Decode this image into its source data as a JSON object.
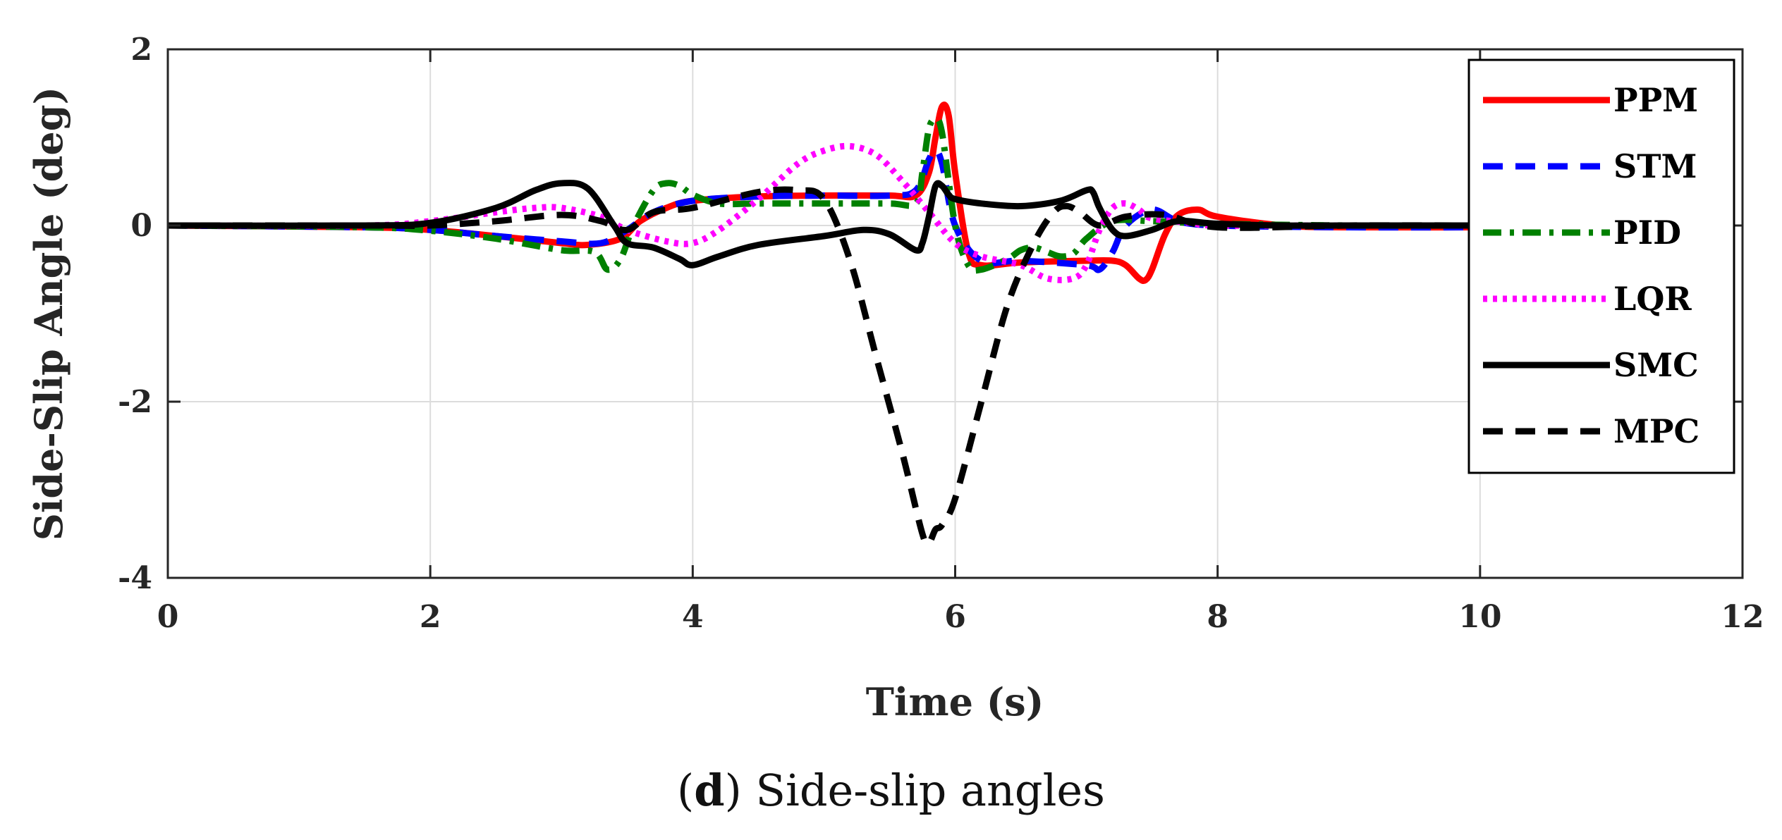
{
  "chart_data": {
    "type": "line",
    "xlabel": "Time (s)",
    "ylabel": "Side-Slip Angle (deg)",
    "xlim": [
      0,
      12
    ],
    "ylim": [
      -4,
      2
    ],
    "xticks": [
      0,
      2,
      4,
      6,
      8,
      10,
      12
    ],
    "yticks": [
      -4,
      -2,
      0,
      2
    ],
    "xtick_labels": [
      "0",
      "2",
      "4",
      "6",
      "8",
      "10",
      "12"
    ],
    "ytick_labels": [
      "-4",
      "-2",
      "0",
      "2"
    ],
    "grid": true,
    "legend_position": "top-right",
    "series": [
      {
        "name": "PPM",
        "color": "#ff0000",
        "style": "solid",
        "x": [
          0,
          1.5,
          2.0,
          2.5,
          3.0,
          3.2,
          3.45,
          3.6,
          3.8,
          4.0,
          4.5,
          5.0,
          5.5,
          5.7,
          5.8,
          5.85,
          5.9,
          5.95,
          6.0,
          6.1,
          6.2,
          6.5,
          7.0,
          7.2,
          7.3,
          7.4,
          7.45,
          7.5,
          7.6,
          7.7,
          7.85,
          8.0,
          8.5,
          9.0,
          10.0,
          11.0
        ],
        "y": [
          0,
          -0.02,
          -0.05,
          -0.12,
          -0.2,
          -0.22,
          -0.15,
          0.05,
          0.2,
          0.28,
          0.33,
          0.34,
          0.34,
          0.34,
          0.6,
          1.0,
          1.35,
          1.25,
          0.6,
          -0.3,
          -0.45,
          -0.42,
          -0.4,
          -0.4,
          -0.45,
          -0.6,
          -0.62,
          -0.5,
          -0.1,
          0.12,
          0.18,
          0.1,
          0.0,
          -0.02,
          -0.02,
          -0.02
        ]
      },
      {
        "name": "STM",
        "color": "#0000ff",
        "style": "dash",
        "x": [
          0,
          1.5,
          2.0,
          2.5,
          3.0,
          3.3,
          3.5,
          3.7,
          4.0,
          4.5,
          5.0,
          5.5,
          5.7,
          5.8,
          5.85,
          5.9,
          6.0,
          6.2,
          6.5,
          7.0,
          7.1,
          7.2,
          7.3,
          7.5,
          7.7,
          8.0,
          9.0,
          10.0,
          11.0
        ],
        "y": [
          0,
          -0.02,
          -0.05,
          -0.12,
          -0.18,
          -0.2,
          -0.05,
          0.15,
          0.28,
          0.33,
          0.34,
          0.34,
          0.4,
          0.75,
          0.85,
          0.7,
          0.0,
          -0.4,
          -0.4,
          -0.45,
          -0.5,
          -0.3,
          0.0,
          0.18,
          0.05,
          0.0,
          -0.02,
          -0.02,
          -0.02
        ]
      },
      {
        "name": "PID",
        "color": "#008000",
        "style": "dashdot",
        "x": [
          0,
          1.5,
          2.0,
          2.5,
          3.0,
          3.25,
          3.35,
          3.45,
          3.55,
          3.7,
          3.8,
          3.9,
          4.0,
          4.2,
          4.5,
          5.0,
          5.5,
          5.7,
          5.75,
          5.8,
          5.85,
          5.9,
          6.0,
          6.1,
          6.2,
          6.4,
          6.5,
          6.6,
          6.7,
          6.8,
          6.9,
          7.0,
          7.2,
          7.5,
          8.0,
          9.0,
          10.0,
          11.0
        ],
        "y": [
          0,
          -0.02,
          -0.06,
          -0.15,
          -0.28,
          -0.3,
          -0.5,
          -0.38,
          0.0,
          0.4,
          0.48,
          0.45,
          0.35,
          0.25,
          0.25,
          0.25,
          0.25,
          0.25,
          0.6,
          1.1,
          1.2,
          1.05,
          0.0,
          -0.45,
          -0.5,
          -0.38,
          -0.28,
          -0.25,
          -0.3,
          -0.35,
          -0.32,
          -0.15,
          0.05,
          0.05,
          0.02,
          0.0,
          0.0,
          0.0
        ]
      },
      {
        "name": "LQR",
        "color": "#ff00ff",
        "style": "dot",
        "x": [
          0,
          1.5,
          2.0,
          2.5,
          2.8,
          3.0,
          3.3,
          3.5,
          3.8,
          4.0,
          4.2,
          4.5,
          4.8,
          5.0,
          5.2,
          5.4,
          5.6,
          5.8,
          6.0,
          6.2,
          6.5,
          6.7,
          6.9,
          7.0,
          7.1,
          7.2,
          7.3,
          7.4,
          7.5,
          7.8,
          8.0,
          9.0,
          10.0,
          11.0
        ],
        "y": [
          0,
          0.0,
          0.05,
          0.15,
          0.2,
          0.2,
          0.1,
          -0.05,
          -0.18,
          -0.2,
          -0.05,
          0.3,
          0.7,
          0.85,
          0.9,
          0.8,
          0.5,
          0.15,
          -0.2,
          -0.35,
          -0.45,
          -0.6,
          -0.6,
          -0.45,
          -0.05,
          0.2,
          0.25,
          0.18,
          0.08,
          0.03,
          0.0,
          0.0,
          0.0,
          0.0
        ]
      },
      {
        "name": "SMC",
        "color": "#000000",
        "style": "solid",
        "x": [
          0,
          1.5,
          2.0,
          2.5,
          2.8,
          3.0,
          3.2,
          3.4,
          3.5,
          3.7,
          3.9,
          4.0,
          4.2,
          4.5,
          5.0,
          5.3,
          5.5,
          5.7,
          5.75,
          5.8,
          5.85,
          5.9,
          5.95,
          6.0,
          6.2,
          6.5,
          6.8,
          7.0,
          7.05,
          7.1,
          7.2,
          7.3,
          7.5,
          7.7,
          8.0,
          8.5,
          9.0,
          10.0,
          11.0
        ],
        "y": [
          0,
          0.0,
          0.03,
          0.2,
          0.4,
          0.48,
          0.42,
          0.0,
          -0.2,
          -0.25,
          -0.38,
          -0.45,
          -0.35,
          -0.22,
          -0.12,
          -0.05,
          -0.1,
          -0.28,
          -0.2,
          0.1,
          0.45,
          0.45,
          0.35,
          0.3,
          0.25,
          0.22,
          0.28,
          0.4,
          0.38,
          0.2,
          -0.05,
          -0.12,
          -0.05,
          0.05,
          0.02,
          0.0,
          0.0,
          0.0,
          0.0
        ]
      },
      {
        "name": "MPC",
        "color": "#000000",
        "style": "dash",
        "x": [
          0,
          1.5,
          2.0,
          2.5,
          3.0,
          3.3,
          3.5,
          3.7,
          4.0,
          4.5,
          4.8,
          5.0,
          5.2,
          5.4,
          5.6,
          5.75,
          5.8,
          5.85,
          5.9,
          6.0,
          6.2,
          6.4,
          6.6,
          6.75,
          6.85,
          6.95,
          7.1,
          7.3,
          7.6,
          8.0,
          9.0,
          10.0,
          11.0
        ],
        "y": [
          0,
          0.0,
          0.0,
          0.05,
          0.12,
          0.05,
          -0.05,
          0.15,
          0.2,
          0.38,
          0.4,
          0.3,
          -0.4,
          -1.5,
          -2.6,
          -3.5,
          -3.6,
          -3.45,
          -3.4,
          -3.1,
          -2.0,
          -0.9,
          -0.2,
          0.15,
          0.22,
          0.15,
          0.0,
          0.1,
          0.12,
          -0.02,
          0.0,
          0.0,
          0.0
        ]
      }
    ]
  },
  "caption": {
    "letter": "d",
    "text": "Side-slip angles"
  }
}
